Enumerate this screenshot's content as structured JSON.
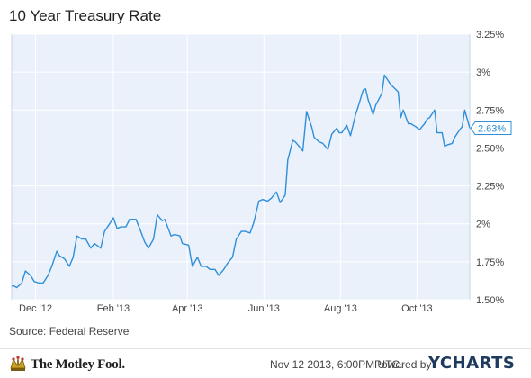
{
  "chart_data": {
    "type": "line",
    "title": "10 Year Treasury Rate",
    "source": "Source: Federal Reserve",
    "ylim": [
      1.5,
      3.25
    ],
    "y_ticks": [
      "3.25%",
      "3%",
      "2.75%",
      "2.50%",
      "2.25%",
      "2%",
      "1.75%",
      "1.50%"
    ],
    "y_tick_values": [
      3.25,
      3.0,
      2.75,
      2.5,
      2.25,
      2.0,
      1.75,
      1.5
    ],
    "x_ticks": [
      "Dec '12",
      "Feb '13",
      "Apr '13",
      "Jun '13",
      "Aug '13",
      "Oct '13"
    ],
    "x_tick_dates": [
      "2012-12-01",
      "2013-02-01",
      "2013-04-01",
      "2013-06-01",
      "2013-08-01",
      "2013-10-01"
    ],
    "x_range": [
      "2012-11-12",
      "2013-11-12"
    ],
    "grid": true,
    "last_value_label": "2.63%",
    "last_value": 2.63,
    "series": [
      {
        "color": "#2e8fd8",
        "points": [
          [
            "2012-11-12",
            1.59
          ],
          [
            "2012-11-14",
            1.59
          ],
          [
            "2012-11-16",
            1.58
          ],
          [
            "2012-11-20",
            1.61
          ],
          [
            "2012-11-23",
            1.69
          ],
          [
            "2012-11-27",
            1.66
          ],
          [
            "2012-11-30",
            1.62
          ],
          [
            "2012-12-04",
            1.61
          ],
          [
            "2012-12-07",
            1.61
          ],
          [
            "2012-12-11",
            1.66
          ],
          [
            "2012-12-14",
            1.72
          ],
          [
            "2012-12-18",
            1.82
          ],
          [
            "2012-12-20",
            1.79
          ],
          [
            "2012-12-24",
            1.77
          ],
          [
            "2012-12-28",
            1.72
          ],
          [
            "2012-12-31",
            1.78
          ],
          [
            "2013-01-03",
            1.92
          ],
          [
            "2013-01-07",
            1.9
          ],
          [
            "2013-01-10",
            1.9
          ],
          [
            "2013-01-14",
            1.84
          ],
          [
            "2013-01-17",
            1.87
          ],
          [
            "2013-01-22",
            1.84
          ],
          [
            "2013-01-25",
            1.95
          ],
          [
            "2013-01-29",
            2.0
          ],
          [
            "2013-02-01",
            2.04
          ],
          [
            "2013-02-04",
            1.97
          ],
          [
            "2013-02-07",
            1.98
          ],
          [
            "2013-02-11",
            1.98
          ],
          [
            "2013-02-14",
            2.03
          ],
          [
            "2013-02-19",
            2.03
          ],
          [
            "2013-02-22",
            1.97
          ],
          [
            "2013-02-26",
            1.88
          ],
          [
            "2013-03-01",
            1.84
          ],
          [
            "2013-03-05",
            1.9
          ],
          [
            "2013-03-08",
            2.06
          ],
          [
            "2013-03-12",
            2.02
          ],
          [
            "2013-03-14",
            2.03
          ],
          [
            "2013-03-19",
            1.92
          ],
          [
            "2013-03-22",
            1.93
          ],
          [
            "2013-03-26",
            1.92
          ],
          [
            "2013-03-28",
            1.87
          ],
          [
            "2013-04-02",
            1.86
          ],
          [
            "2013-04-05",
            1.72
          ],
          [
            "2013-04-09",
            1.78
          ],
          [
            "2013-04-12",
            1.72
          ],
          [
            "2013-04-16",
            1.72
          ],
          [
            "2013-04-19",
            1.7
          ],
          [
            "2013-04-23",
            1.7
          ],
          [
            "2013-04-26",
            1.66
          ],
          [
            "2013-04-30",
            1.7
          ],
          [
            "2013-05-03",
            1.74
          ],
          [
            "2013-05-07",
            1.78
          ],
          [
            "2013-05-10",
            1.9
          ],
          [
            "2013-05-14",
            1.95
          ],
          [
            "2013-05-17",
            1.95
          ],
          [
            "2013-05-21",
            1.94
          ],
          [
            "2013-05-24",
            2.01
          ],
          [
            "2013-05-28",
            2.15
          ],
          [
            "2013-05-31",
            2.16
          ],
          [
            "2013-06-04",
            2.15
          ],
          [
            "2013-06-07",
            2.17
          ],
          [
            "2013-06-11",
            2.21
          ],
          [
            "2013-06-14",
            2.14
          ],
          [
            "2013-06-18",
            2.19
          ],
          [
            "2013-06-20",
            2.42
          ],
          [
            "2013-06-24",
            2.55
          ],
          [
            "2013-06-26",
            2.54
          ],
          [
            "2013-06-28",
            2.52
          ],
          [
            "2013-07-02",
            2.48
          ],
          [
            "2013-07-05",
            2.74
          ],
          [
            "2013-07-09",
            2.64
          ],
          [
            "2013-07-11",
            2.57
          ],
          [
            "2013-07-15",
            2.54
          ],
          [
            "2013-07-18",
            2.53
          ],
          [
            "2013-07-22",
            2.49
          ],
          [
            "2013-07-25",
            2.59
          ],
          [
            "2013-07-29",
            2.63
          ],
          [
            "2013-07-31",
            2.6
          ],
          [
            "2013-08-02",
            2.6
          ],
          [
            "2013-08-06",
            2.65
          ],
          [
            "2013-08-09",
            2.58
          ],
          [
            "2013-08-13",
            2.72
          ],
          [
            "2013-08-15",
            2.77
          ],
          [
            "2013-08-19",
            2.88
          ],
          [
            "2013-08-21",
            2.89
          ],
          [
            "2013-08-23",
            2.82
          ],
          [
            "2013-08-27",
            2.72
          ],
          [
            "2013-08-29",
            2.78
          ],
          [
            "2013-09-03",
            2.86
          ],
          [
            "2013-09-05",
            2.98
          ],
          [
            "2013-09-09",
            2.93
          ],
          [
            "2013-09-11",
            2.91
          ],
          [
            "2013-09-16",
            2.87
          ],
          [
            "2013-09-18",
            2.7
          ],
          [
            "2013-09-20",
            2.75
          ],
          [
            "2013-09-24",
            2.66
          ],
          [
            "2013-09-26",
            2.66
          ],
          [
            "2013-09-30",
            2.64
          ],
          [
            "2013-10-03",
            2.62
          ],
          [
            "2013-10-07",
            2.66
          ],
          [
            "2013-10-09",
            2.69
          ],
          [
            "2013-10-11",
            2.7
          ],
          [
            "2013-10-15",
            2.75
          ],
          [
            "2013-10-17",
            2.6
          ],
          [
            "2013-10-21",
            2.6
          ],
          [
            "2013-10-23",
            2.51
          ],
          [
            "2013-10-25",
            2.52
          ],
          [
            "2013-10-29",
            2.53
          ],
          [
            "2013-10-31",
            2.57
          ],
          [
            "2013-11-04",
            2.62
          ],
          [
            "2013-11-06",
            2.64
          ],
          [
            "2013-11-08",
            2.75
          ],
          [
            "2013-11-12",
            2.63
          ]
        ]
      }
    ]
  },
  "footer": {
    "logo_text": "The Motley Fool.",
    "timestamp": "Nov 12 2013, 6:00PM UTC.",
    "powered_by": "Powered by",
    "brand": "YCHARTS"
  }
}
